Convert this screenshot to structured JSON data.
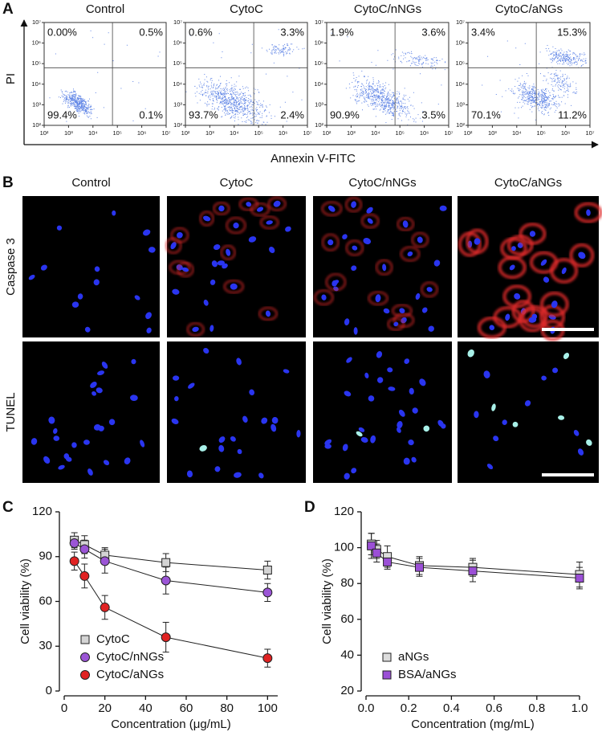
{
  "chart_data": [
    {
      "type": "flow",
      "panel": "A",
      "ylabel": "PI",
      "xlabel": "Annexin V-FITC",
      "log_scale": true,
      "xlim": [
        100,
        10000000
      ],
      "ylim": [
        100,
        10000000
      ],
      "xticks": [
        {
          "value": 100,
          "label": "10²"
        },
        {
          "value": 1000,
          "label": "10³"
        },
        {
          "value": 10000,
          "label": "10⁴"
        },
        {
          "value": 100000,
          "label": "10⁵"
        },
        {
          "value": 1000000,
          "label": "10⁶"
        },
        {
          "value": 10000000,
          "label": "10⁷"
        }
      ],
      "yticks": [
        {
          "value": 100,
          "label": "10²"
        },
        {
          "value": 1000,
          "label": "10³"
        },
        {
          "value": 10000,
          "label": "10⁴"
        },
        {
          "value": 100000,
          "label": "10⁵"
        },
        {
          "value": 1000000,
          "label": "10⁶"
        },
        {
          "value": 10000000,
          "label": "10⁷"
        }
      ],
      "plots": [
        {
          "title": "Control",
          "values": [
            0,
            0.5,
            99.4,
            0.1
          ],
          "value_labels": [
            "0.00%",
            "0.5%",
            "99.4%",
            "0.1%"
          ]
        },
        {
          "title": "CytoC",
          "values": [
            0.6,
            3.3,
            93.7,
            2.4
          ],
          "value_labels": [
            "0.6%",
            "3.3%",
            "93.7%",
            "2.4%"
          ]
        },
        {
          "title": "CytoC/nNGs",
          "values": [
            1.9,
            3.6,
            90.9,
            3.5
          ],
          "value_labels": [
            "1.9%",
            "3.6%",
            "90.9%",
            "3.5%"
          ]
        },
        {
          "title": "CytoC/aNGs",
          "values": [
            3.4,
            15.3,
            70.1,
            11.2
          ],
          "value_labels": [
            "3.4%",
            "15.3%",
            "70.1%",
            "11.2%"
          ]
        }
      ]
    },
    {
      "type": "image-grid",
      "panel": "B",
      "columns": [
        "Control",
        "CytoC",
        "CytoC/nNGs",
        "CytoC/aNGs"
      ],
      "rows": [
        "Caspase 3",
        "TUNEL"
      ],
      "row_colors": [
        "#e8302a",
        "#3cbf3c"
      ]
    },
    {
      "type": "line",
      "panel": "C",
      "ylabel": "Cell viability (%)",
      "xlabel": "Concentration (μg/mL)",
      "xlim": [
        0,
        105
      ],
      "ylim": [
        0,
        120
      ],
      "xticks": [
        0,
        20,
        40,
        60,
        80,
        100
      ],
      "yticks": [
        0,
        30,
        60,
        90,
        120
      ],
      "legend": "lower left",
      "x": [
        5,
        10,
        20,
        50,
        100
      ],
      "series": [
        {
          "name": "CytoC",
          "color": "#d4d4d4",
          "marker": "square",
          "values": [
            101,
            98,
            91,
            86,
            81
          ],
          "errors": [
            5,
            6,
            5,
            6,
            6
          ]
        },
        {
          "name": "CytoC/nNGs",
          "color": "#9b55d6",
          "marker": "circle",
          "values": [
            99,
            95,
            87,
            74,
            66
          ],
          "errors": [
            4,
            6,
            8,
            9,
            6
          ]
        },
        {
          "name": "CytoC/aNGs",
          "color": "#e02222",
          "marker": "circle",
          "values": [
            87,
            77,
            56,
            36,
            22
          ],
          "errors": [
            6,
            8,
            8,
            10,
            6
          ]
        }
      ]
    },
    {
      "type": "line",
      "panel": "D",
      "ylabel": "Cell viability (%)",
      "xlabel": "Concentration (mg/mL)",
      "xlim": [
        0,
        1
      ],
      "ylim": [
        20,
        120
      ],
      "xticks": [
        {
          "value": 0,
          "label": "0.0"
        },
        0.2,
        0.4,
        0.6,
        0.8,
        {
          "value": 1,
          "label": "1.0"
        }
      ],
      "yticks": [
        20,
        40,
        60,
        80,
        100,
        120
      ],
      "legend": "lower left",
      "x": [
        0.025,
        0.05,
        0.1,
        0.25,
        0.5,
        1
      ],
      "series": [
        {
          "name": "aNGs",
          "color": "#dcdcdc",
          "marker": "square",
          "values": [
            102,
            99,
            95,
            90,
            89,
            85
          ],
          "errors": [
            6,
            5,
            6,
            5,
            5,
            7
          ]
        },
        {
          "name": "BSA/aNGs",
          "color": "#9b4fd6",
          "marker": "square",
          "values": [
            101,
            97,
            92,
            89,
            87,
            83
          ],
          "errors": [
            7,
            5,
            4,
            5,
            6,
            6
          ]
        }
      ]
    }
  ]
}
